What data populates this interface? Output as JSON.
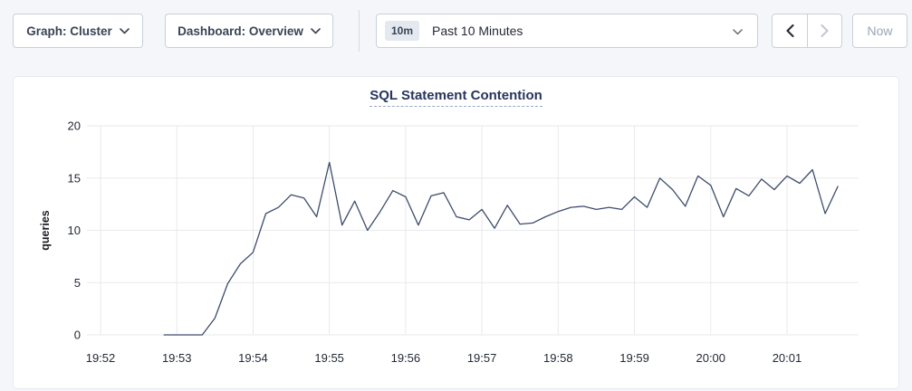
{
  "toolbar": {
    "graph_dropdown": {
      "label": "Graph: Cluster",
      "icon": "chevron-down"
    },
    "dashboard_dropdown": {
      "label": "Dashboard: Overview",
      "icon": "chevron-down"
    },
    "time_window": {
      "badge": "10m",
      "label": "Past 10 Minutes",
      "icon": "chevron-down"
    },
    "prev_button": {
      "icon": "chevron-left",
      "enabled": true
    },
    "next_button": {
      "icon": "chevron-right",
      "enabled": false
    },
    "now_button": {
      "label": "Now",
      "enabled": false
    }
  },
  "chart_data": {
    "type": "line",
    "title": "SQL Statement Contention",
    "xlabel": "",
    "ylabel": "queries",
    "ylim": [
      0,
      20
    ],
    "y_ticks": [
      0,
      5,
      10,
      15,
      20
    ],
    "x_ticks": [
      "19:52",
      "19:53",
      "19:54",
      "19:55",
      "19:56",
      "19:57",
      "19:58",
      "19:59",
      "20:00",
      "20:01"
    ],
    "grid": true,
    "legend": "none",
    "series": [
      {
        "name": "queries",
        "start_time": "19:52:50",
        "interval_seconds": 10,
        "values": [
          0,
          0,
          0,
          0,
          1.6,
          4.9,
          6.8,
          7.9,
          11.6,
          12.2,
          13.4,
          13.1,
          11.3,
          16.5,
          10.5,
          12.8,
          10.0,
          11.8,
          13.8,
          13.2,
          10.5,
          13.3,
          13.6,
          11.3,
          11.0,
          12.0,
          10.2,
          12.4,
          10.6,
          10.7,
          11.3,
          11.8,
          12.2,
          12.3,
          12.0,
          12.2,
          12.0,
          13.2,
          12.2,
          15.0,
          13.9,
          12.3,
          15.2,
          14.3,
          11.3,
          14.0,
          13.3,
          14.9,
          13.9,
          15.2,
          14.5,
          15.8,
          11.6,
          14.2
        ]
      }
    ],
    "colors": {
      "line": "#3d4c6b",
      "grid": "#e9eaee",
      "tick_text": "#242a35",
      "title": "#28355c"
    }
  }
}
